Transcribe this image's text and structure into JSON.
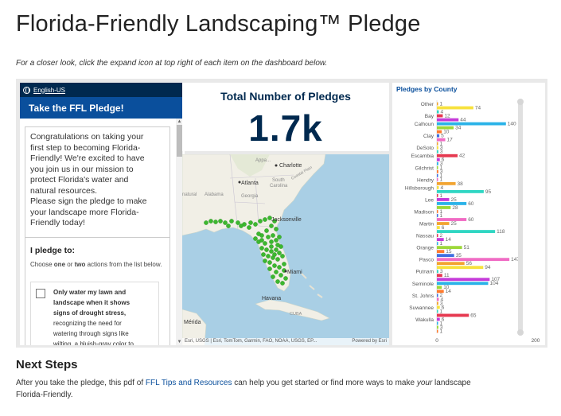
{
  "page": {
    "title": "Florida-Friendly Landscaping™ Pledge",
    "intro": "For a closer look, click the expand icon at top right of each item on the dashboard below."
  },
  "survey": {
    "language": "English-US",
    "header": "Take the FFL Pledge!",
    "welcome_lines": [
      "Congratulations on taking your",
      "first step to becoming Florida-",
      "Friendly! We're excited to have",
      "you join us in our mission to",
      "protect Florida's water and",
      "natural resources.",
      "Please sign the pledge to make",
      "your landscape more Florida-",
      "Friendly today!"
    ],
    "pledge_label": "I pledge to:",
    "hint_pre": "Choose ",
    "hint_one": "one",
    "hint_mid": " or ",
    "hint_two": "two",
    "hint_post": " actions from the list below.",
    "choice_bold_lines": [
      "Only water my lawn and",
      "landscape when it shows",
      "signs of drought stress,"
    ],
    "choice_lines": [
      "recognizing the need for",
      "watering through signs like",
      "wilting, a bluish-gray color to"
    ]
  },
  "indicator": {
    "title": "Total Number of Pledges",
    "value": "1.7k"
  },
  "map": {
    "labels": {
      "appalachian": "Appa...",
      "charlotte": "Charlotte",
      "atlanta": "Atlanta",
      "south_carolina_1": "South",
      "south_carolina_2": "Carolina",
      "coastal_plain": "Coastal Plain",
      "alabama": "Alabama",
      "georgia": "Georgia",
      "natural": "natural",
      "jacksonville": "Jacksonville",
      "miami": "Miami",
      "havana": "Havana",
      "cuba": "CUBA",
      "merida": "Mérida"
    },
    "attribution": "Esri, USGS | Esri, TomTom, Garmin, FAO, NOAA, USGS, EP...",
    "powered_by": "Powered by Esri",
    "colors": {
      "water": "#a9cfe5",
      "land": "#f1efe6",
      "points": "#3cb82f"
    }
  },
  "chart_data": {
    "type": "bar",
    "title": "Pledges by County",
    "orientation": "horizontal",
    "xlim": [
      0,
      200
    ],
    "ticks": [
      "0",
      "200"
    ],
    "labeled_categories": [
      "Other",
      "Bay",
      "Calhoun",
      "Clay",
      "DeSoto",
      "Escambia",
      "Gilchrist",
      "Hendry",
      "Hillsborough",
      "Lee",
      "Madison",
      "Martin",
      "Nassau",
      "Orange",
      "Pasco",
      "Putnam",
      "Seminole",
      "St. Johns",
      "Suwannee",
      "Wakulla"
    ],
    "bars": [
      {
        "v": 1,
        "label": "1",
        "tick": "Other"
      },
      {
        "v": 74,
        "label": "74"
      },
      {
        "v": 4,
        "label": "4"
      },
      {
        "v": 12,
        "label": "12",
        "tick": "Bay"
      },
      {
        "v": 44,
        "label": "44"
      },
      {
        "v": 140,
        "label": "140",
        "tick": "Calhoun"
      },
      {
        "v": 34,
        "label": "34"
      },
      {
        "v": 10,
        "label": "10"
      },
      {
        "v": 5,
        "label": "5",
        "tick": "Clay"
      },
      {
        "v": 17,
        "label": "17"
      },
      {
        "v": 1,
        "label": "1"
      },
      {
        "v": 3,
        "label": "3",
        "tick": "DeSoto"
      },
      {
        "v": 3,
        "label": "3"
      },
      {
        "v": 42,
        "label": "42",
        "tick": "Escambia"
      },
      {
        "v": 6,
        "label": "6"
      },
      {
        "v": 3,
        "label": "3"
      },
      {
        "v": 1,
        "label": "1",
        "tick": "Gilchrist"
      },
      {
        "v": 3,
        "label": "3"
      },
      {
        "v": 1,
        "label": "1"
      },
      {
        "v": 1,
        "label": "1",
        "tick": "Hendry"
      },
      {
        "v": 38,
        "label": "38"
      },
      {
        "v": 4,
        "label": "4",
        "tick": "Hillsborough"
      },
      {
        "v": 95,
        "label": "95"
      },
      {
        "v": 1,
        "label": "1"
      },
      {
        "v": 25,
        "label": "25",
        "tick": "Lee"
      },
      {
        "v": 60,
        "label": "60"
      },
      {
        "v": 28,
        "label": "28"
      },
      {
        "v": 1,
        "label": "1",
        "tick": "Madison"
      },
      {
        "v": 1,
        "label": "1"
      },
      {
        "v": 60,
        "label": "60"
      },
      {
        "v": 25,
        "label": "25",
        "tick": "Martin"
      },
      {
        "v": 6,
        "label": "6"
      },
      {
        "v": 118,
        "label": "118"
      },
      {
        "v": 2,
        "label": "2",
        "tick": "Nassau"
      },
      {
        "v": 14,
        "label": "14"
      },
      {
        "v": 1,
        "label": "1"
      },
      {
        "v": 51,
        "label": "51",
        "tick": "Orange"
      },
      {
        "v": 15,
        "label": "15"
      },
      {
        "v": 35,
        "label": "35"
      },
      {
        "v": 147,
        "label": "147",
        "tick": "Pasco"
      },
      {
        "v": 56,
        "label": "56"
      },
      {
        "v": 94,
        "label": "94"
      },
      {
        "v": 3,
        "label": "3",
        "tick": "Putnam"
      },
      {
        "v": 11,
        "label": "11"
      },
      {
        "v": 107,
        "label": "107"
      },
      {
        "v": 104,
        "label": "104",
        "tick": "Seminole"
      },
      {
        "v": 10,
        "label": "10"
      },
      {
        "v": 14,
        "label": "14"
      },
      {
        "v": 2,
        "label": "2",
        "tick": "St. Johns"
      },
      {
        "v": 4,
        "label": "4"
      },
      {
        "v": 3,
        "label": "3"
      },
      {
        "v": 6,
        "label": "6",
        "tick": "Suwannee"
      },
      {
        "v": 1,
        "label": "1"
      },
      {
        "v": 65,
        "label": "65"
      },
      {
        "v": 6,
        "label": "6",
        "tick": "Wakulla"
      },
      {
        "v": 1,
        "label": "1"
      },
      {
        "v": 3,
        "label": "3"
      },
      {
        "v": 1,
        "label": "1"
      }
    ],
    "palette": [
      "#f2a431",
      "#f7e23e",
      "#2fd6c3",
      "#e63950",
      "#c53ad9",
      "#2bb3e8",
      "#9dd83a",
      "#ff7b2e",
      "#3e6fe0",
      "#f06bc4"
    ]
  },
  "next_steps": {
    "title": "Next Steps",
    "text_pre": "After you take the pledge, this pdf of ",
    "link": "FFL Tips and Resources",
    "text_mid": " can help you get started or find more ways to make ",
    "text_em": "your",
    "text_post": " landscape",
    "text_line2": "Florida-Friendly."
  }
}
